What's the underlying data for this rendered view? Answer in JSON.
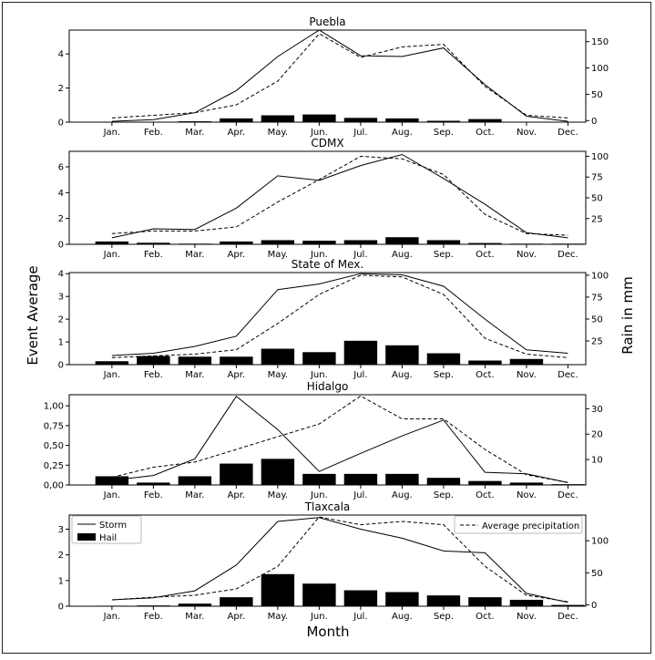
{
  "figure": {
    "ylabel_left": "Event Average",
    "ylabel_right": "Rain in mm",
    "xlabel": "Month"
  },
  "legend": {
    "storm": "Storm",
    "hail": "Hail",
    "precip": "Average precipitation"
  },
  "chart_data": [
    {
      "type": "bar+line",
      "title": "Puebla",
      "categories": [
        "Jan.",
        "Feb.",
        "Mar.",
        "Apr.",
        "May.",
        "Jun.",
        "Jul.",
        "Aug.",
        "Sep.",
        "Oct.",
        "Nov.",
        "Dec."
      ],
      "left_ticks": [
        "0",
        "2",
        "4"
      ],
      "left_tick_values": [
        0,
        2,
        4
      ],
      "left_range": [
        0,
        5.4
      ],
      "right_ticks": [
        "0",
        "50",
        "100",
        "150"
      ],
      "right_tick_values": [
        0,
        50,
        100,
        150
      ],
      "right_range": [
        -3,
        172
      ],
      "hail": [
        0.02,
        0.02,
        0.05,
        0.22,
        0.4,
        0.45,
        0.25,
        0.22,
        0.08,
        0.18,
        0.02,
        0.01
      ],
      "storm": [
        0.05,
        0.15,
        0.55,
        1.85,
        3.85,
        5.4,
        3.9,
        3.85,
        4.35,
        2.2,
        0.35,
        0.05
      ],
      "precipitation": [
        5,
        10,
        15,
        30,
        75,
        165,
        120,
        140,
        145,
        65,
        10,
        5
      ]
    },
    {
      "type": "bar+line",
      "title": "CDMX",
      "categories": [
        "Jan.",
        "Feb.",
        "Mar.",
        "Apr.",
        "May.",
        "Jun.",
        "Jul.",
        "Aug.",
        "Sep.",
        "Oct.",
        "Nov.",
        "Dec."
      ],
      "left_ticks": [
        "0",
        "2",
        "4",
        "6"
      ],
      "left_tick_values": [
        0,
        2,
        4,
        6
      ],
      "left_range": [
        0,
        7.2
      ],
      "right_ticks": [
        "25",
        "50",
        "75",
        "100"
      ],
      "right_tick_values": [
        25,
        50,
        75,
        100
      ],
      "right_range": [
        -6,
        106
      ],
      "hail": [
        0.22,
        0.12,
        0.05,
        0.22,
        0.32,
        0.28,
        0.32,
        0.55,
        0.32,
        0.1,
        0.05,
        0.05
      ],
      "storm": [
        0.5,
        1.2,
        1.15,
        2.8,
        5.3,
        4.95,
        6.1,
        6.95,
        5.1,
        3.1,
        0.9,
        0.5
      ],
      "precipitation": [
        7,
        10,
        10,
        15,
        45,
        72,
        100,
        97,
        78,
        30,
        7,
        5
      ]
    },
    {
      "type": "bar+line",
      "title": "State of Mex.",
      "categories": [
        "Jan.",
        "Feb.",
        "Mar.",
        "Apr.",
        "May.",
        "Jun.",
        "Jul.",
        "Aug.",
        "Sep.",
        "Oct.",
        "Nov.",
        "Dec."
      ],
      "left_ticks": [
        "0",
        "1",
        "2",
        "3",
        "4"
      ],
      "left_tick_values": [
        0,
        1,
        2,
        3,
        4
      ],
      "left_range": [
        0,
        4.05
      ],
      "right_ticks": [
        "25",
        "50",
        "75",
        "100"
      ],
      "right_tick_values": [
        25,
        50,
        75,
        100
      ],
      "right_range": [
        -2,
        103
      ],
      "hail": [
        0.15,
        0.38,
        0.35,
        0.35,
        0.7,
        0.55,
        1.05,
        0.85,
        0.5,
        0.18,
        0.25,
        0.02
      ],
      "storm": [
        0.4,
        0.5,
        0.8,
        1.25,
        3.3,
        3.55,
        4.0,
        3.95,
        3.45,
        2.0,
        0.65,
        0.5
      ],
      "precipitation": [
        6,
        8,
        10,
        15,
        45,
        78,
        100,
        98,
        78,
        28,
        10,
        6
      ]
    },
    {
      "type": "bar+line",
      "title": "Hidalgo",
      "categories": [
        "Jan.",
        "Feb.",
        "Mar.",
        "Apr.",
        "May.",
        "Jun.",
        "Jul.",
        "Aug.",
        "Sep.",
        "Oct.",
        "Nov.",
        "Dec."
      ],
      "left_ticks": [
        "0,00",
        "0,25",
        "0,50",
        "0,75",
        "1,00"
      ],
      "left_tick_values": [
        0,
        0.25,
        0.5,
        0.75,
        1.0
      ],
      "left_range": [
        0,
        1.14
      ],
      "right_ticks": [
        "10",
        "20",
        "30"
      ],
      "right_tick_values": [
        10,
        20,
        30
      ],
      "right_range": [
        0,
        35.5
      ],
      "hail": [
        0.11,
        0.03,
        0.11,
        0.27,
        0.33,
        0.14,
        0.14,
        0.14,
        0.09,
        0.05,
        0.03,
        0.01
      ],
      "storm": [
        0.06,
        0.12,
        0.33,
        1.12,
        0.7,
        0.17,
        0.4,
        0.62,
        0.82,
        0.16,
        0.14,
        0.03
      ],
      "precipitation": [
        3,
        7,
        9,
        14,
        19,
        24,
        35,
        26,
        26,
        14,
        4,
        1
      ]
    },
    {
      "type": "bar+line",
      "title": "Tlaxcala",
      "categories": [
        "Jan.",
        "Feb.",
        "Mar.",
        "Apr.",
        "May.",
        "Jun.",
        "Jul.",
        "Aug.",
        "Sep.",
        "Oct.",
        "Nov.",
        "Dec."
      ],
      "left_ticks": [
        "0",
        "1",
        "2",
        "3"
      ],
      "left_tick_values": [
        0,
        1,
        2,
        3
      ],
      "left_range": [
        0,
        3.55
      ],
      "right_ticks": [
        "0",
        "50",
        "100"
      ],
      "right_tick_values": [
        0,
        50,
        100
      ],
      "right_range": [
        -2,
        140
      ],
      "hail": [
        0.02,
        0.03,
        0.1,
        0.35,
        1.25,
        0.88,
        0.62,
        0.55,
        0.42,
        0.35,
        0.25,
        0.05
      ],
      "storm": [
        0.25,
        0.33,
        0.6,
        1.6,
        3.3,
        3.45,
        3.0,
        2.65,
        2.15,
        2.08,
        0.5,
        0.15
      ],
      "precipitation": [
        8,
        12,
        15,
        25,
        60,
        137,
        125,
        130,
        125,
        60,
        15,
        5
      ]
    }
  ]
}
